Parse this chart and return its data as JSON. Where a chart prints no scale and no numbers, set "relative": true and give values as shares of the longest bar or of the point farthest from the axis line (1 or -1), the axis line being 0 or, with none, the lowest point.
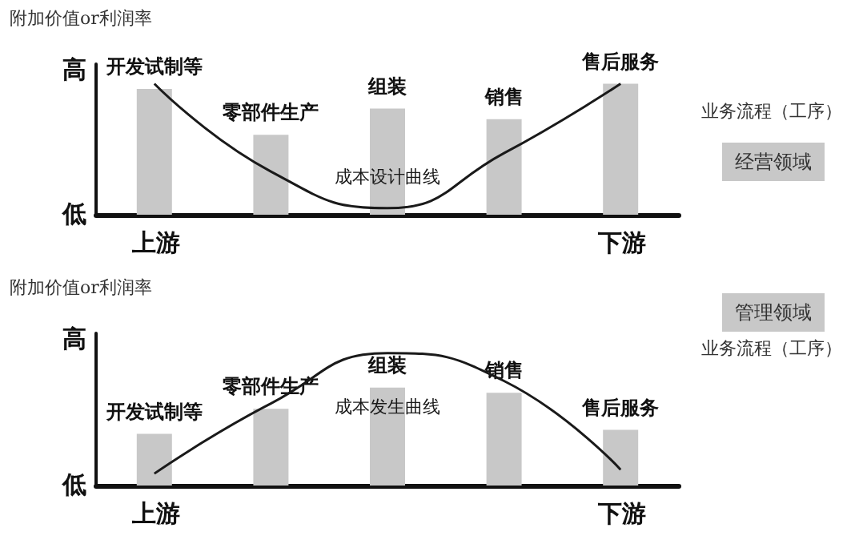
{
  "chart_data": [
    {
      "type": "bar",
      "ylabel": "附加价值or利润率",
      "xlabel": "业务流程（工序）",
      "relative": true,
      "legend": "right",
      "categories": [
        "开发试制等",
        "零部件生产",
        "组装",
        "销售",
        "售后服务"
      ],
      "annotations": [
        "高",
        "低",
        "上游",
        "下游"
      ],
      "series": [
        {
          "name": "经营领域",
          "color": "#c8c8c8",
          "values": [
            0.96,
            0.61,
            0.81,
            0.73,
            1
          ]
        },
        {
          "name": "成本设计曲线",
          "type": "line",
          "color": "#1a1a1a",
          "marker": "none",
          "values": [
            1,
            0.33,
            0.05,
            0.47,
            1
          ]
        }
      ]
    },
    {
      "type": "bar",
      "ylabel": "附加价值or利润率",
      "xlabel": "业务流程（工序）",
      "relative": true,
      "legend": "top right",
      "categories": [
        "开发试制等",
        "零部件生产",
        "组装",
        "销售",
        "售后服务"
      ],
      "annotations": [
        "高",
        "低",
        "上游",
        "下游"
      ],
      "series": [
        {
          "name": "管理领域",
          "color": "#c8c8c8",
          "values": [
            0.39,
            0.58,
            0.74,
            0.7,
            0.42
          ]
        },
        {
          "name": "成本发生曲线",
          "type": "line",
          "color": "#1a1a1a",
          "marker": "none",
          "values": [
            0.09,
            0.62,
            1,
            0.79,
            0.12
          ]
        }
      ]
    }
  ]
}
